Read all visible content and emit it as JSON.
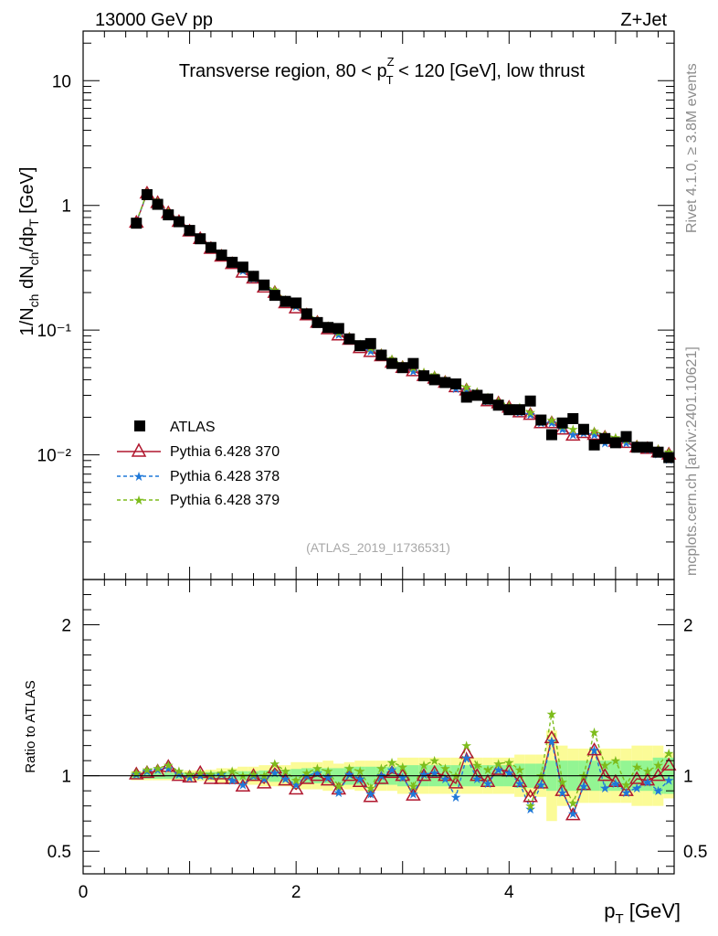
{
  "header": {
    "left": "13000 GeV pp",
    "right": "Z+Jet"
  },
  "side_labels": {
    "rivet": "Rivet 4.1.0, ≥ 3.8M events",
    "mcplots": "mcplots.cern.ch [arXiv:2401.10621]"
  },
  "analysis_id": "(ATLAS_2019_I1736531)",
  "colors": {
    "atlas": "#000000",
    "p370": "#b0172e",
    "p378": "#1f78d8",
    "p379": "#7dbc1c",
    "band_inner": "#93f593",
    "band_outer": "#fbfb97"
  },
  "chart_data": [
    {
      "type": "scatter",
      "panel": "main",
      "title": "Transverse region, 80 < p_T^Z < 120 [GeV], low thrust",
      "title_parts": {
        "pre": "Transverse region, 80 < p",
        "sup": "Z",
        "sub": "T",
        "post": " < 120 [GeV], low thrust"
      },
      "xlabel": "p_T [GeV]",
      "ylabel": "1/N_ch dN_ch/dp_T [GeV]",
      "yscale": "log",
      "xlim": [
        0,
        5.55
      ],
      "ylim": [
        0.001,
        25
      ],
      "y_ticks": [
        {
          "value": 10,
          "label": "10"
        },
        {
          "value": 1,
          "label": "1"
        },
        {
          "value": 0.1,
          "label": "10⁻¹"
        },
        {
          "value": 0.01,
          "label": "10⁻²"
        }
      ],
      "x": [
        0.5,
        0.6,
        0.7,
        0.8,
        0.9,
        1.0,
        1.1,
        1.2,
        1.3,
        1.4,
        1.5,
        1.6,
        1.7,
        1.8,
        1.9,
        2.0,
        2.1,
        2.2,
        2.3,
        2.4,
        2.5,
        2.6,
        2.7,
        2.8,
        2.9,
        3.0,
        3.1,
        3.2,
        3.3,
        3.4,
        3.5,
        3.6,
        3.7,
        3.8,
        3.9,
        4.0,
        4.1,
        4.2,
        4.3,
        4.4,
        4.5,
        4.6,
        4.7,
        4.8,
        4.9,
        5.0,
        5.1,
        5.2,
        5.3,
        5.4,
        5.5
      ],
      "series": [
        {
          "name": "ATLAS",
          "values": [
            0.72,
            1.22,
            1.02,
            0.84,
            0.74,
            0.63,
            0.54,
            0.46,
            0.4,
            0.35,
            0.32,
            0.27,
            0.23,
            0.19,
            0.17,
            0.165,
            0.135,
            0.115,
            0.105,
            0.103,
            0.085,
            0.075,
            0.078,
            0.063,
            0.054,
            0.05,
            0.054,
            0.043,
            0.04,
            0.038,
            0.037,
            0.029,
            0.03,
            0.028,
            0.025,
            0.023,
            0.023,
            0.027,
            0.019,
            0.0145,
            0.018,
            0.0195,
            0.016,
            0.012,
            0.0135,
            0.0125,
            0.014,
            0.0115,
            0.0115,
            0.0105,
            0.0095
          ]
        },
        {
          "name": "Pythia 6.428 370",
          "values": [
            0.73,
            1.25,
            1.05,
            0.87,
            0.74,
            0.62,
            0.54,
            0.45,
            0.39,
            0.34,
            0.29,
            0.26,
            0.22,
            0.2,
            0.165,
            0.15,
            0.132,
            0.115,
            0.102,
            0.091,
            0.084,
            0.072,
            0.067,
            0.062,
            0.055,
            0.05,
            0.047,
            0.043,
            0.041,
            0.038,
            0.035,
            0.033,
            0.03,
            0.027,
            0.026,
            0.024,
            0.022,
            0.021,
            0.018,
            0.018,
            0.016,
            0.0143,
            0.015,
            0.0145,
            0.0138,
            0.0128,
            0.0125,
            0.0115,
            0.0112,
            0.0105,
            0.0101
          ]
        },
        {
          "name": "Pythia 6.428 378",
          "values": [
            0.73,
            1.26,
            1.06,
            0.86,
            0.75,
            0.63,
            0.54,
            0.46,
            0.4,
            0.34,
            0.3,
            0.26,
            0.23,
            0.2,
            0.17,
            0.156,
            0.135,
            0.117,
            0.104,
            0.092,
            0.086,
            0.074,
            0.068,
            0.063,
            0.056,
            0.05,
            0.047,
            0.044,
            0.041,
            0.038,
            0.034,
            0.033,
            0.03,
            0.027,
            0.026,
            0.024,
            0.022,
            0.021,
            0.018,
            0.018,
            0.016,
            0.0145,
            0.015,
            0.0145,
            0.0125,
            0.0128,
            0.0125,
            0.0113,
            0.0111,
            0.0102,
            0.0092
          ]
        },
        {
          "name": "Pythia 6.428 379",
          "values": [
            0.74,
            1.27,
            1.07,
            0.89,
            0.76,
            0.64,
            0.55,
            0.47,
            0.41,
            0.36,
            0.31,
            0.27,
            0.23,
            0.21,
            0.175,
            0.16,
            0.138,
            0.12,
            0.108,
            0.096,
            0.089,
            0.077,
            0.072,
            0.066,
            0.059,
            0.053,
            0.05,
            0.046,
            0.044,
            0.04,
            0.037,
            0.035,
            0.032,
            0.029,
            0.027,
            0.025,
            0.024,
            0.022,
            0.019,
            0.019,
            0.017,
            0.016,
            0.016,
            0.0155,
            0.0145,
            0.0138,
            0.0132,
            0.0122,
            0.0118,
            0.0112,
            0.0105
          ]
        }
      ],
      "legend": [
        "ATLAS",
        "Pythia 6.428 370",
        "Pythia 6.428 378",
        "Pythia 6.428 379"
      ],
      "legend_position": "bottom-left"
    },
    {
      "type": "line",
      "panel": "ratio",
      "ylabel": "Ratio to ATLAS",
      "xlabel": "p_T [GeV]",
      "xlim": [
        0,
        5.55
      ],
      "ylim": [
        0.35,
        2.3
      ],
      "x_ticks": [
        0,
        2,
        4
      ],
      "y_ticks": [
        0.5,
        1,
        2
      ],
      "x": [
        0.5,
        0.6,
        0.7,
        0.8,
        0.9,
        1.0,
        1.1,
        1.2,
        1.3,
        1.4,
        1.5,
        1.6,
        1.7,
        1.8,
        1.9,
        2.0,
        2.1,
        2.2,
        2.3,
        2.4,
        2.5,
        2.6,
        2.7,
        2.8,
        2.9,
        3.0,
        3.1,
        3.2,
        3.3,
        3.4,
        3.5,
        3.6,
        3.7,
        3.8,
        3.9,
        4.0,
        4.1,
        4.2,
        4.3,
        4.4,
        4.5,
        4.6,
        4.7,
        4.8,
        4.9,
        5.0,
        5.1,
        5.2,
        5.3,
        5.4,
        5.5
      ],
      "band_inner": [
        0.02,
        0.02,
        0.02,
        0.02,
        0.02,
        0.02,
        0.02,
        0.025,
        0.025,
        0.03,
        0.03,
        0.03,
        0.035,
        0.04,
        0.04,
        0.045,
        0.05,
        0.05,
        0.05,
        0.05,
        0.06,
        0.06,
        0.06,
        0.06,
        0.06,
        0.07,
        0.07,
        0.07,
        0.07,
        0.07,
        0.07,
        0.07,
        0.07,
        0.07,
        0.07,
        0.07,
        0.08,
        0.08,
        0.08,
        0.1,
        0.1,
        0.1,
        0.1,
        0.1,
        0.1,
        0.1,
        0.1,
        0.1,
        0.1,
        0.12,
        0.12
      ],
      "band_outer": [
        0.03,
        0.03,
        0.03,
        0.03,
        0.03,
        0.035,
        0.035,
        0.04,
        0.05,
        0.05,
        0.06,
        0.06,
        0.07,
        0.07,
        0.07,
        0.09,
        0.09,
        0.09,
        0.1,
        0.08,
        0.09,
        0.1,
        0.1,
        0.1,
        0.1,
        0.12,
        0.12,
        0.12,
        0.12,
        0.12,
        0.12,
        0.12,
        0.12,
        0.12,
        0.12,
        0.12,
        0.14,
        0.14,
        0.14,
        0.3,
        0.2,
        0.18,
        0.18,
        0.18,
        0.18,
        0.18,
        0.18,
        0.2,
        0.2,
        0.2,
        0.15
      ],
      "series": [
        {
          "name": "Pythia 6.428 370",
          "values": [
            1.01,
            1.02,
            1.03,
            1.06,
            1.0,
            0.99,
            1.02,
            0.98,
            0.98,
            0.98,
            0.93,
            1.0,
            0.95,
            1.05,
            0.97,
            0.91,
            0.98,
            1.0,
            0.97,
            0.91,
            1.0,
            0.96,
            0.86,
            0.98,
            1.02,
            1.0,
            0.87,
            1.0,
            1.02,
            1.0,
            0.95,
            1.15,
            1.0,
            0.96,
            1.04,
            1.03,
            0.96,
            0.86,
            0.95,
            1.25,
            0.9,
            0.74,
            0.94,
            1.17,
            1.0,
            0.96,
            0.9,
            0.98,
            0.97,
            1.0,
            1.07
          ]
        },
        {
          "name": "Pythia 6.428 378",
          "values": [
            1.01,
            1.03,
            1.04,
            1.05,
            1.01,
            0.99,
            1.0,
            1.0,
            1.01,
            0.97,
            0.94,
            1.0,
            0.98,
            1.02,
            0.98,
            0.94,
            1.0,
            1.02,
            0.99,
            0.89,
            1.01,
            0.98,
            0.88,
            1.0,
            1.04,
            0.99,
            0.88,
            1.01,
            1.02,
            0.98,
            0.86,
            1.12,
            0.98,
            0.95,
            1.04,
            1.02,
            0.95,
            0.78,
            0.94,
            1.23,
            0.89,
            0.75,
            0.93,
            1.17,
            0.92,
            0.95,
            0.89,
            0.92,
            0.96,
            0.9,
            0.97
          ]
        },
        {
          "name": "Pythia 6.428 379",
          "values": [
            1.02,
            1.04,
            1.05,
            1.07,
            1.03,
            1.01,
            1.02,
            1.01,
            1.02,
            1.03,
            1.0,
            1.01,
            1.0,
            1.08,
            1.03,
            0.97,
            1.02,
            1.05,
            1.03,
            0.93,
            1.05,
            1.03,
            0.92,
            1.05,
            1.09,
            1.06,
            0.93,
            1.07,
            1.1,
            1.05,
            1.0,
            1.2,
            1.07,
            1.04,
            1.08,
            1.09,
            1.04,
            0.8,
            1.0,
            1.41,
            0.96,
            0.82,
            1.0,
            1.29,
            1.07,
            1.1,
            0.94,
            1.06,
            1.03,
            1.07,
            1.15
          ]
        }
      ]
    }
  ]
}
